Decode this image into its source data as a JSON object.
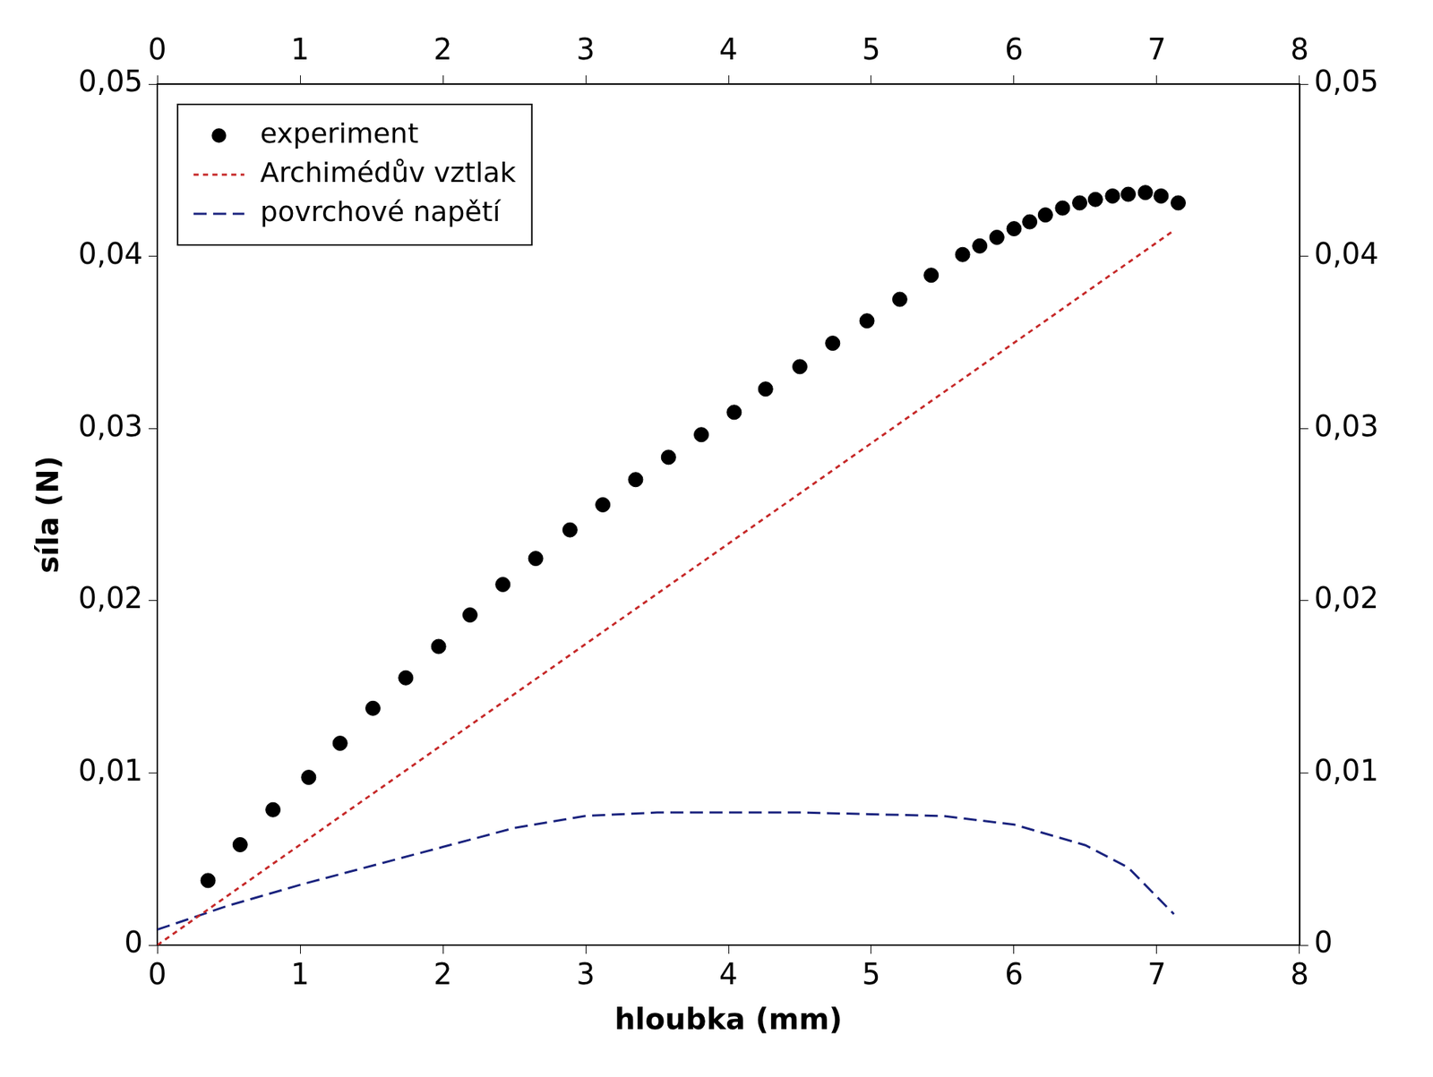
{
  "chart_data": {
    "type": "scatter",
    "x_label": "hloubka (mm)",
    "y_label": "síla (N)",
    "xlim": [
      0,
      8
    ],
    "xticks": [
      0,
      1,
      2,
      3,
      4,
      5,
      6,
      7,
      8
    ],
    "ylim": [
      0,
      0.05
    ],
    "yticks": [
      0,
      {
        "value": 0.01,
        "label": "0,01"
      },
      {
        "value": 0.02,
        "label": "0,02"
      },
      {
        "value": 0.03,
        "label": "0,03"
      },
      {
        "value": 0.04,
        "label": "0,04"
      },
      {
        "value": 0.05,
        "label": "0,05"
      }
    ],
    "grid": false,
    "legend": "upper left",
    "series": [
      {
        "name": "experiment",
        "type": "scatter",
        "marker": "circle",
        "color": "#000000",
        "x": [
          0.355,
          0.58,
          0.81,
          1.06,
          1.28,
          1.51,
          1.74,
          1.97,
          2.19,
          2.42,
          2.65,
          2.89,
          3.12,
          3.35,
          3.58,
          3.81,
          4.04,
          4.26,
          4.5,
          4.73,
          4.97,
          5.2,
          5.42,
          5.64,
          5.76,
          5.88,
          6.0,
          6.11,
          6.22,
          6.34,
          6.46,
          6.57,
          6.69,
          6.8,
          6.92,
          7.03,
          7.15
        ],
        "values": [
          0.00375,
          0.00583,
          0.00786,
          0.00974,
          0.01172,
          0.01375,
          0.01552,
          0.01734,
          0.01917,
          0.02094,
          0.02245,
          0.02411,
          0.02557,
          0.02703,
          0.02833,
          0.02964,
          0.03094,
          0.03229,
          0.03359,
          0.03495,
          0.03625,
          0.0375,
          0.0389,
          0.0401,
          0.0406,
          0.0411,
          0.0416,
          0.042,
          0.0424,
          0.0428,
          0.0431,
          0.0433,
          0.0435,
          0.0436,
          0.0437,
          0.0435,
          0.0431
        ]
      },
      {
        "name": "Archimédův vztlak",
        "type": "line",
        "line_style": "dotted",
        "color": "#c62828",
        "x": [
          0,
          7.12
        ],
        "values": [
          0,
          0.0415
        ]
      },
      {
        "name": "povrchové napětí",
        "type": "line",
        "line_style": "dashed",
        "color": "#1a237e",
        "x": [
          0,
          0.5,
          1,
          1.5,
          2,
          2.5,
          3,
          3.5,
          4,
          4.5,
          5,
          5.5,
          6,
          6.5,
          6.8,
          7.12
        ],
        "values": [
          0.0009,
          0.0023,
          0.0035,
          0.0046,
          0.0057,
          0.0068,
          0.0075,
          0.0077,
          0.0077,
          0.0077,
          0.0076,
          0.0075,
          0.007,
          0.0058,
          0.0045,
          0.0018
        ]
      }
    ]
  }
}
